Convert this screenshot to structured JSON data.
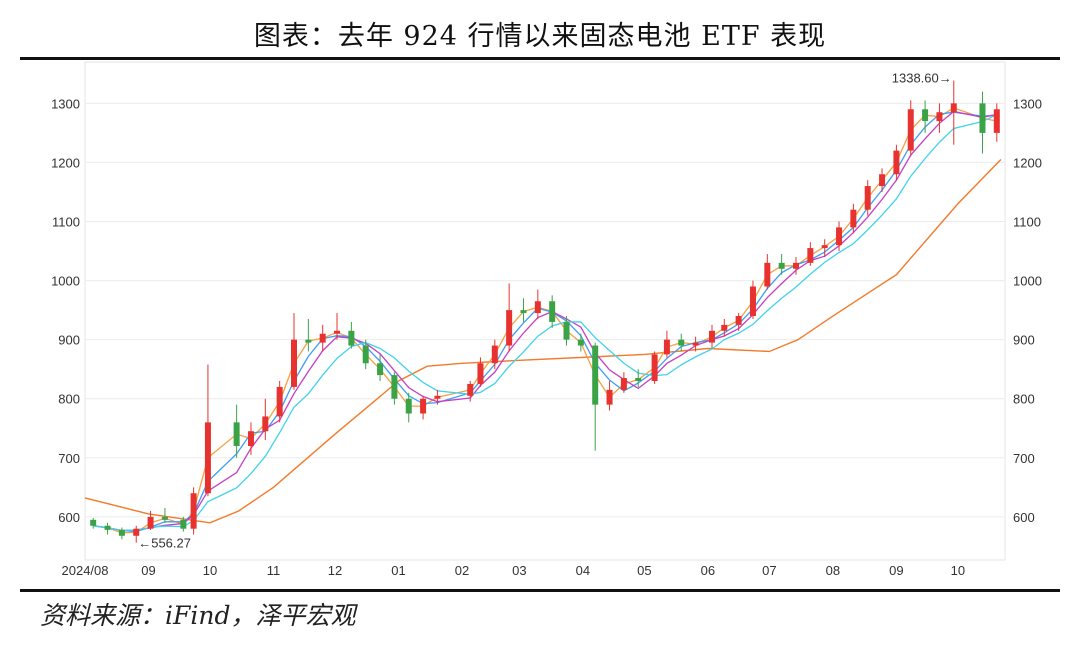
{
  "title": "图表：去年 924 行情以来固态电池 ETF 表现",
  "source": "资料来源：iFind，泽平宏观",
  "chart_data": {
    "type": "candlestick",
    "title": "",
    "xlabel": "",
    "ylabel": "",
    "ylim": [
      527,
      1370
    ],
    "yticks": [
      600,
      700,
      800,
      900,
      1000,
      1100,
      1200,
      1300
    ],
    "xlim": [
      "2024-08-01",
      "2025-10-24"
    ],
    "xticks": [
      {
        "date": "2024-08-01",
        "label": "2024/08"
      },
      {
        "date": "2024-09-01",
        "label": "09"
      },
      {
        "date": "2024-10-01",
        "label": "10"
      },
      {
        "date": "2024-11-01",
        "label": "11"
      },
      {
        "date": "2024-12-01",
        "label": "12"
      },
      {
        "date": "2025-01-01",
        "label": "01"
      },
      {
        "date": "2025-02-01",
        "label": "02"
      },
      {
        "date": "2025-03-01",
        "label": "03"
      },
      {
        "date": "2025-04-01",
        "label": "04"
      },
      {
        "date": "2025-05-01",
        "label": "05"
      },
      {
        "date": "2025-06-01",
        "label": "06"
      },
      {
        "date": "2025-07-01",
        "label": "07"
      },
      {
        "date": "2025-08-01",
        "label": "08"
      },
      {
        "date": "2025-09-01",
        "label": "09"
      },
      {
        "date": "2025-10-01",
        "label": "10"
      }
    ],
    "grid": true,
    "colors": {
      "up": "#e8322f",
      "down": "#3aa346",
      "ma_a": "#f5a040",
      "ma_b": "#3d9df2",
      "ma_c": "#c43fc4",
      "ma_d": "#3fd3ea",
      "ma_long": "#f27a2a"
    },
    "candles": [
      [
        "2024-08-05",
        595,
        598,
        580,
        585
      ],
      [
        "2024-08-12",
        585,
        590,
        570,
        578
      ],
      [
        "2024-08-19",
        578,
        582,
        562,
        568
      ],
      [
        "2024-08-26",
        568,
        585,
        556.27,
        580
      ],
      [
        "2024-09-02",
        580,
        610,
        578,
        600
      ],
      [
        "2024-09-09",
        600,
        615,
        590,
        595
      ],
      [
        "2024-09-18",
        595,
        600,
        575,
        580
      ],
      [
        "2024-09-23",
        580,
        650,
        570,
        640
      ],
      [
        "2024-09-30",
        640,
        858,
        635,
        760
      ],
      [
        "2024-10-14",
        760,
        790,
        700,
        720
      ],
      [
        "2024-10-21",
        720,
        760,
        705,
        745
      ],
      [
        "2024-10-28",
        745,
        800,
        730,
        770
      ],
      [
        "2024-11-04",
        770,
        830,
        760,
        820
      ],
      [
        "2024-11-11",
        820,
        945,
        815,
        900
      ],
      [
        "2024-11-18",
        900,
        935,
        880,
        895
      ],
      [
        "2024-11-25",
        895,
        925,
        880,
        910
      ],
      [
        "2024-12-02",
        910,
        945,
        900,
        915
      ],
      [
        "2024-12-09",
        915,
        930,
        885,
        890
      ],
      [
        "2024-12-16",
        890,
        900,
        850,
        860
      ],
      [
        "2024-12-23",
        860,
        875,
        830,
        840
      ],
      [
        "2024-12-30",
        840,
        845,
        790,
        800
      ],
      [
        "2025-01-06",
        800,
        810,
        760,
        775
      ],
      [
        "2025-01-13",
        775,
        805,
        765,
        800
      ],
      [
        "2025-01-20",
        800,
        815,
        790,
        805
      ],
      [
        "2025-02-05",
        805,
        830,
        795,
        825
      ],
      [
        "2025-02-10",
        825,
        870,
        820,
        860
      ],
      [
        "2025-02-17",
        860,
        900,
        850,
        890
      ],
      [
        "2025-02-24",
        890,
        995,
        880,
        950
      ],
      [
        "2025-03-03",
        950,
        970,
        930,
        945
      ],
      [
        "2025-03-10",
        945,
        985,
        935,
        965
      ],
      [
        "2025-03-17",
        965,
        975,
        920,
        930
      ],
      [
        "2025-03-24",
        930,
        940,
        890,
        900
      ],
      [
        "2025-03-31",
        900,
        910,
        880,
        890
      ],
      [
        "2025-04-07",
        890,
        895,
        712,
        790
      ],
      [
        "2025-04-14",
        790,
        830,
        780,
        815
      ],
      [
        "2025-04-21",
        815,
        845,
        810,
        835
      ],
      [
        "2025-04-28",
        835,
        850,
        820,
        830
      ],
      [
        "2025-05-06",
        830,
        880,
        825,
        875
      ],
      [
        "2025-05-12",
        875,
        915,
        870,
        900
      ],
      [
        "2025-05-19",
        900,
        910,
        880,
        890
      ],
      [
        "2025-05-26",
        890,
        905,
        880,
        895
      ],
      [
        "2025-06-03",
        895,
        925,
        885,
        915
      ],
      [
        "2025-06-09",
        915,
        935,
        905,
        925
      ],
      [
        "2025-06-16",
        925,
        945,
        915,
        940
      ],
      [
        "2025-06-23",
        940,
        1000,
        935,
        990
      ],
      [
        "2025-06-30",
        990,
        1045,
        985,
        1030
      ],
      [
        "2025-07-07",
        1030,
        1045,
        1010,
        1020
      ],
      [
        "2025-07-14",
        1020,
        1040,
        1010,
        1030
      ],
      [
        "2025-07-21",
        1030,
        1065,
        1025,
        1055
      ],
      [
        "2025-07-28",
        1055,
        1070,
        1040,
        1060
      ],
      [
        "2025-08-04",
        1060,
        1100,
        1050,
        1090
      ],
      [
        "2025-08-11",
        1090,
        1130,
        1080,
        1120
      ],
      [
        "2025-08-18",
        1120,
        1170,
        1110,
        1160
      ],
      [
        "2025-08-25",
        1160,
        1190,
        1150,
        1180
      ],
      [
        "2025-09-01",
        1180,
        1230,
        1170,
        1220
      ],
      [
        "2025-09-08",
        1220,
        1305,
        1210,
        1290
      ],
      [
        "2025-09-15",
        1290,
        1305,
        1250,
        1270
      ],
      [
        "2025-09-22",
        1270,
        1300,
        1250,
        1285
      ],
      [
        "2025-09-29",
        1285,
        1338.6,
        1230,
        1300
      ],
      [
        "2025-10-13",
        1300,
        1320,
        1215,
        1250
      ],
      [
        "2025-10-20",
        1250,
        1300,
        1235,
        1290
      ]
    ],
    "ma_long": [
      [
        "2024-08-01",
        632
      ],
      [
        "2024-09-01",
        605
      ],
      [
        "2024-10-01",
        590
      ],
      [
        "2024-10-15",
        610
      ],
      [
        "2024-11-01",
        650
      ],
      [
        "2024-12-01",
        740
      ],
      [
        "2025-01-01",
        830
      ],
      [
        "2025-01-15",
        855
      ],
      [
        "2025-02-01",
        860
      ],
      [
        "2025-03-01",
        865
      ],
      [
        "2025-04-01",
        870
      ],
      [
        "2025-05-01",
        875
      ],
      [
        "2025-06-01",
        885
      ],
      [
        "2025-07-01",
        880
      ],
      [
        "2025-07-15",
        900
      ],
      [
        "2025-08-01",
        940
      ],
      [
        "2025-09-01",
        1010
      ],
      [
        "2025-10-01",
        1130
      ],
      [
        "2025-10-22",
        1205
      ]
    ],
    "annotations": [
      {
        "label": "1338.60→",
        "date": "2025-09-29",
        "value": 1338.6,
        "side": "left"
      },
      {
        "label": "←556.27",
        "date": "2024-08-26",
        "value": 556.27,
        "side": "right"
      }
    ]
  }
}
